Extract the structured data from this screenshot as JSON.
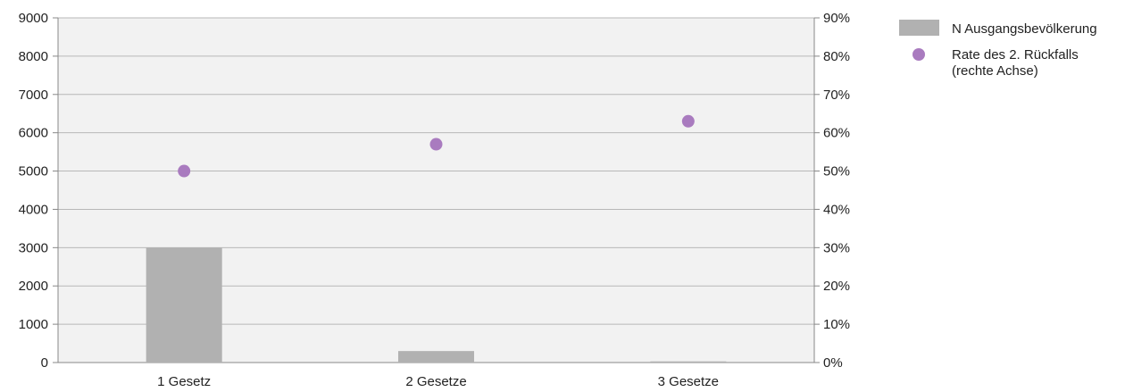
{
  "chart_data": {
    "type": "bar",
    "categories": [
      "1 Gesetz",
      "2 Gesetze",
      "3 Gesetze"
    ],
    "series": [
      {
        "name": "N Ausgangsbevölkerung",
        "type": "bar",
        "axis": "left",
        "values": [
          3000,
          300,
          30
        ],
        "color": "#b1b1b1"
      },
      {
        "name": "Rate des 2. Rückfalls (rechte Achse)",
        "name_lines": [
          "Rate des 2. Rückfalls",
          "(rechte Achse)"
        ],
        "type": "scatter",
        "axis": "right",
        "values": [
          0.5,
          0.57,
          0.63
        ],
        "color": "#a97bbf"
      }
    ],
    "y_left": {
      "ylim": [
        0,
        9000
      ],
      "ticks": [
        0,
        1000,
        2000,
        3000,
        4000,
        5000,
        6000,
        7000,
        8000,
        9000
      ],
      "tick_labels": [
        "0",
        "1000",
        "2000",
        "3000",
        "4000",
        "5000",
        "6000",
        "7000",
        "8000",
        "9000"
      ]
    },
    "y_right": {
      "ylim": [
        0,
        0.9
      ],
      "ticks": [
        0,
        0.1,
        0.2,
        0.3,
        0.4,
        0.5,
        0.6,
        0.7,
        0.8,
        0.9
      ],
      "tick_labels": [
        "0%",
        "10%",
        "20%",
        "30%",
        "40%",
        "50%",
        "60%",
        "70%",
        "80%",
        "90%"
      ]
    },
    "title": "",
    "xlabel": "",
    "ylabel": "",
    "grid": true,
    "legend": "top-right",
    "colors": {
      "plot_background": "#f2f2f2",
      "gridline": "#b8b8b8",
      "axis": "#888888"
    }
  }
}
